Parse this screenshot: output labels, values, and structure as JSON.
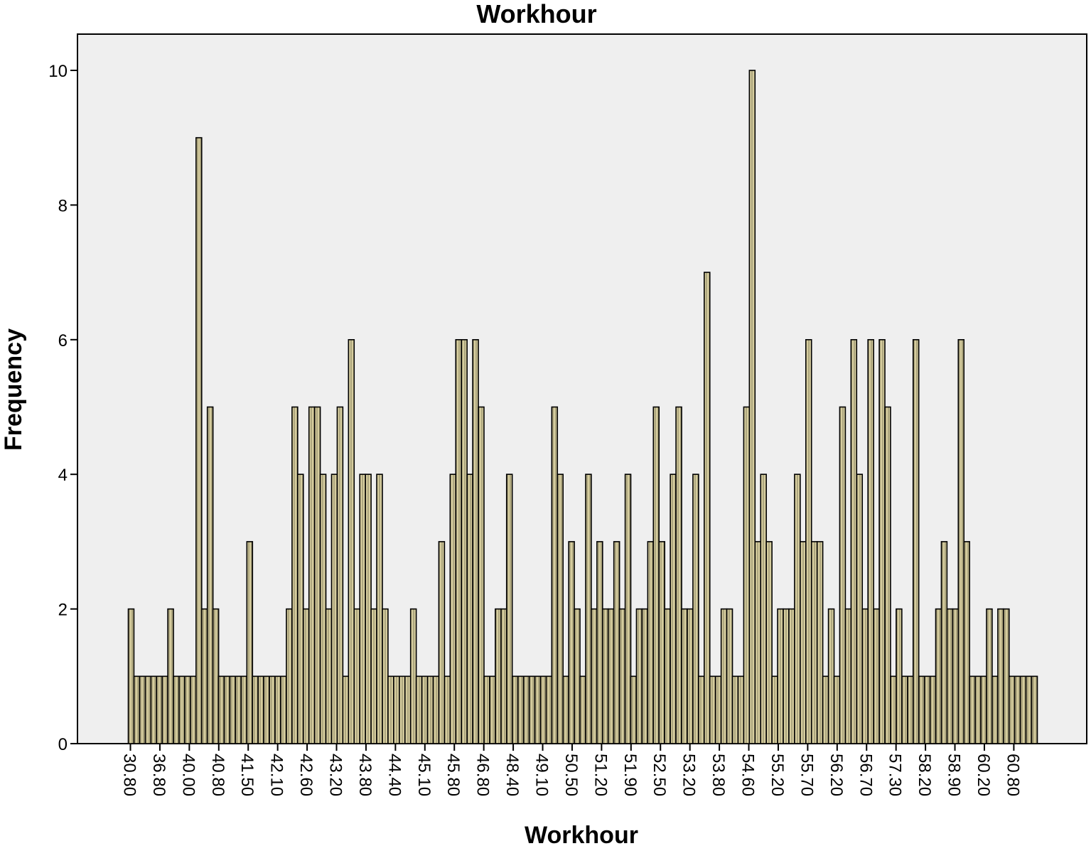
{
  "chart_data": {
    "type": "bar",
    "title": "Workhour",
    "xlabel": "Workhour",
    "ylabel": "Frequency",
    "ylim": [
      0,
      10.5
    ],
    "yticks": [
      0,
      2,
      4,
      6,
      8,
      10
    ],
    "ytick_labels": [
      "0",
      "2",
      "4",
      "6",
      "8",
      "10"
    ],
    "x_tick_labels": [
      "30.80",
      "36.80",
      "40.00",
      "40.80",
      "41.50",
      "42.10",
      "42.60",
      "43.20",
      "43.80",
      "44.40",
      "45.10",
      "45.80",
      "46.80",
      "48.40",
      "49.10",
      "50.50",
      "51.20",
      "51.90",
      "52.50",
      "53.20",
      "53.80",
      "54.60",
      "55.20",
      "55.70",
      "56.20",
      "56.70",
      "57.30",
      "58.20",
      "58.90",
      "60.20",
      "60.80"
    ],
    "values": [
      2,
      1,
      1,
      1,
      1,
      1,
      1,
      2,
      1,
      1,
      1,
      1,
      9,
      2,
      5,
      2,
      1,
      1,
      1,
      1,
      1,
      3,
      1,
      1,
      1,
      1,
      1,
      1,
      2,
      5,
      4,
      2,
      5,
      5,
      4,
      2,
      4,
      5,
      1,
      6,
      2,
      4,
      4,
      2,
      4,
      2,
      1,
      1,
      1,
      1,
      2,
      1,
      1,
      1,
      1,
      3,
      1,
      4,
      6,
      6,
      4,
      6,
      5,
      1,
      1,
      2,
      2,
      4,
      1,
      1,
      1,
      1,
      1,
      1,
      1,
      5,
      4,
      1,
      3,
      2,
      1,
      4,
      2,
      3,
      2,
      2,
      3,
      2,
      4,
      1,
      2,
      2,
      3,
      5,
      3,
      2,
      4,
      5,
      2,
      2,
      4,
      1,
      7,
      1,
      1,
      2,
      2,
      1,
      1,
      5,
      10,
      3,
      4,
      3,
      1,
      2,
      2,
      2,
      4,
      3,
      6,
      3,
      3,
      1,
      2,
      1,
      5,
      2,
      6,
      4,
      2,
      6,
      2,
      6,
      5,
      1,
      2,
      1,
      1,
      6,
      1,
      1,
      1,
      2,
      3,
      2,
      2,
      6,
      3,
      1,
      1,
      1,
      2,
      1,
      2,
      2,
      1,
      1,
      1,
      1,
      1
    ],
    "grid": false,
    "legend": "none",
    "colors": {
      "bar_fill": "#d6cd9e",
      "bar_stroke": "#000000",
      "plot_background": "#efefef",
      "frame": "#000000"
    }
  }
}
